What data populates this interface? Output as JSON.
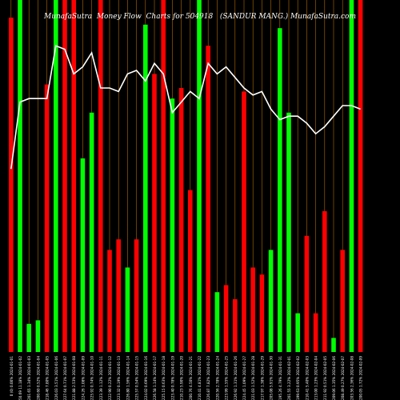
{
  "chart_data": {
    "type": "bar",
    "title_left": "MunafaSutra  Money Flow  Charts for 504918",
    "title_right": "(SANDUR MANG.) MunafaSutra.com",
    "ylim": [
      0,
      100
    ],
    "colors": {
      "up": "#00ff00",
      "down": "#ff0000",
      "line": "#ffffff",
      "grid": "#b36b00",
      "background": "#000000",
      "label": "#ffffff"
    },
    "categories": [
      "0 (0) 0.00% 2024-01-01",
      "150.69 11.18% 2024-01-02",
      "201.65 1.34% 2024-01-03",
      "200.60 0.52% 2024-01-04",
      "218.46 7.80% 2024-01-05",
      "226.03 3.51% 2024-01-06",
      "227.64 0.71% 2024-01-07",
      "221.88 2.53% 2024-01-08",
      "224.26 1.08% 2024-01-09",
      "225.92 0.74% 2024-01-10",
      "223.39 1.12% 2024-01-11",
      "222.90 0.22% 2024-01-12",
      "223.32 0.19% 2024-01-13",
      "226.80 1.56% 2024-01-14",
      "225.57 0.54% 2024-01-15",
      "224.02 0.69% 2024-01-16",
      "226.58 1.14% 2024-01-17",
      "225.15 0.63% 2024-01-18",
      "223.40 0.78% 2024-01-19",
      "210.23 5.90% 2024-01-20",
      "200.76 4.50% 2024-01-21",
      "210.41 4.81% 2024-01-22",
      "226.87 7.82% 2024-01-23",
      "220.56 2.78% 2024-01-24",
      "223.99 1.55% 2024-01-25",
      "226.92 1.31% 2024-01-26",
      "224.45 1.09% 2024-01-27",
      "221.03 1.52% 2024-01-28",
      "217.97 1.38% 2024-01-29",
      "205.08 5.91% 2024-01-30",
      "195.26 4.79% 2024-01-31",
      "201.55 3.22% 2024-02-01",
      "199.63 0.95% 2024-02-02",
      "210.41 5.40% 2024-02-03",
      "213.00 1.23% 2024-02-04",
      "211.92 0.51% 2024-02-05",
      "209.06 1.35% 2024-02-06",
      "208.49 0.27% 2024-02-07",
      "203.56 2.36% 2024-02-08",
      "200.05 1.72% 2024-02-09"
    ],
    "series": [
      {
        "values": [
          95,
          100,
          8,
          9,
          76,
          100,
          100,
          100,
          55,
          68,
          100,
          29,
          32,
          24,
          32,
          93,
          79,
          100,
          72,
          75,
          46,
          100,
          87,
          17,
          19,
          15,
          74,
          24,
          22,
          29,
          92,
          68,
          11,
          33,
          11,
          40,
          4,
          29,
          100,
          100
        ],
        "directions": [
          "down",
          "up",
          "up",
          "up",
          "down",
          "up",
          "down",
          "down",
          "up",
          "up",
          "down",
          "down",
          "down",
          "up",
          "down",
          "up",
          "down",
          "down",
          "up",
          "down",
          "down",
          "up",
          "down",
          "up",
          "down",
          "down",
          "down",
          "down",
          "down",
          "up",
          "up",
          "up",
          "up",
          "down",
          "down",
          "down",
          "up",
          "down",
          "up",
          "down"
        ]
      },
      {
        "values": [
          52,
          71,
          72,
          72,
          72,
          87,
          86,
          79,
          81,
          85,
          75,
          75,
          74,
          79,
          80,
          77,
          82,
          79,
          68,
          71,
          74,
          72,
          82,
          79,
          81,
          78,
          75,
          73,
          74,
          69,
          66,
          67,
          67,
          65,
          62,
          64,
          67,
          70,
          70,
          69
        ]
      }
    ]
  }
}
